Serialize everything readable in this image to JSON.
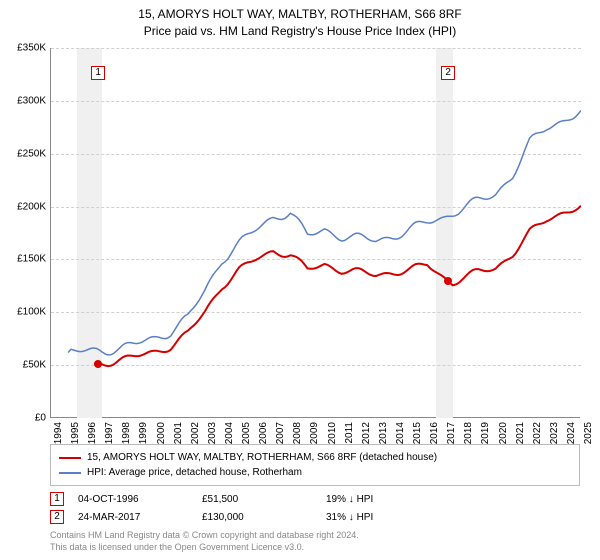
{
  "title_line1": "15, AMORYS HOLT WAY, MALTBY, ROTHERHAM, S66 8RF",
  "title_line2": "Price paid vs. HM Land Registry's House Price Index (HPI)",
  "chart": {
    "type": "line",
    "background_color": "#ffffff",
    "grid_color": "#d0d0d0",
    "axis_color": "#888888",
    "x": {
      "min": 1994,
      "max": 2025,
      "ticks": [
        1994,
        1995,
        1996,
        1997,
        1998,
        1999,
        2000,
        2001,
        2002,
        2003,
        2004,
        2005,
        2006,
        2007,
        2008,
        2009,
        2010,
        2011,
        2012,
        2013,
        2014,
        2015,
        2016,
        2017,
        2018,
        2019,
        2020,
        2021,
        2022,
        2023,
        2024,
        2025
      ],
      "label_fontsize": 10
    },
    "y": {
      "min": 0,
      "max": 350000,
      "tick_step": 50000,
      "tick_labels": [
        "£0",
        "£50K",
        "£100K",
        "£150K",
        "£200K",
        "£250K",
        "£300K",
        "£350K"
      ],
      "label_fontsize": 10
    },
    "series": [
      {
        "name": "15, AMORYS HOLT WAY, MALTBY, ROTHERHAM, S66 8RF (detached house)",
        "color": "#d40000",
        "line_width": 2,
        "data": [
          [
            1996.76,
            51500
          ],
          [
            1997,
            52000
          ],
          [
            1998,
            55000
          ],
          [
            1999,
            58000
          ],
          [
            2000,
            62000
          ],
          [
            2001,
            68000
          ],
          [
            2002,
            80000
          ],
          [
            2003,
            100000
          ],
          [
            2004,
            125000
          ],
          [
            2005,
            140000
          ],
          [
            2006,
            150000
          ],
          [
            2007,
            158000
          ],
          [
            2008,
            155000
          ],
          [
            2009,
            140000
          ],
          [
            2010,
            145000
          ],
          [
            2011,
            140000
          ],
          [
            2012,
            138000
          ],
          [
            2013,
            135000
          ],
          [
            2014,
            138000
          ],
          [
            2015,
            140000
          ],
          [
            2016,
            145000
          ],
          [
            2017.23,
            130000
          ],
          [
            2017.5,
            128000
          ],
          [
            2018,
            132000
          ],
          [
            2019,
            138000
          ],
          [
            2020,
            142000
          ],
          [
            2021,
            155000
          ],
          [
            2022,
            175000
          ],
          [
            2023,
            188000
          ],
          [
            2024,
            195000
          ],
          [
            2025,
            200000
          ]
        ]
      },
      {
        "name": "HPI: Average price, detached house, Rotherham",
        "color": "#5b7fc7",
        "line_width": 1.5,
        "data": [
          [
            1995,
            62000
          ],
          [
            1996,
            63000
          ],
          [
            1997,
            64000
          ],
          [
            1998,
            66000
          ],
          [
            1999,
            70000
          ],
          [
            2000,
            75000
          ],
          [
            2001,
            82000
          ],
          [
            2002,
            95000
          ],
          [
            2003,
            120000
          ],
          [
            2004,
            150000
          ],
          [
            2005,
            165000
          ],
          [
            2006,
            178000
          ],
          [
            2007,
            190000
          ],
          [
            2008,
            195000
          ],
          [
            2009,
            172000
          ],
          [
            2010,
            178000
          ],
          [
            2011,
            172000
          ],
          [
            2012,
            170000
          ],
          [
            2013,
            168000
          ],
          [
            2014,
            172000
          ],
          [
            2015,
            178000
          ],
          [
            2016,
            185000
          ],
          [
            2017,
            190000
          ],
          [
            2018,
            198000
          ],
          [
            2019,
            205000
          ],
          [
            2020,
            212000
          ],
          [
            2021,
            230000
          ],
          [
            2022,
            260000
          ],
          [
            2023,
            275000
          ],
          [
            2024,
            282000
          ],
          [
            2025,
            290000
          ]
        ]
      }
    ],
    "markers": [
      {
        "id": "1",
        "x": 1996.76,
        "y": 51500,
        "band_start": 1995.5,
        "band_end": 1997.0,
        "box_color": "#d40000",
        "date": "04-OCT-1996",
        "price": "£51,500",
        "delta": "19% ↓ HPI"
      },
      {
        "id": "2",
        "x": 2017.23,
        "y": 130000,
        "band_start": 2016.5,
        "band_end": 2017.5,
        "box_color": "#d40000",
        "date": "24-MAR-2017",
        "price": "£130,000",
        "delta": "31% ↓ HPI"
      }
    ],
    "marker_band_color": "#f0f0f0"
  },
  "legend": {
    "border_color": "#bbbbbb",
    "fontsize": 10
  },
  "footer_line1": "Contains HM Land Registry data © Crown copyright and database right 2024.",
  "footer_line2": "This data is licensed under the Open Government Licence v3.0."
}
